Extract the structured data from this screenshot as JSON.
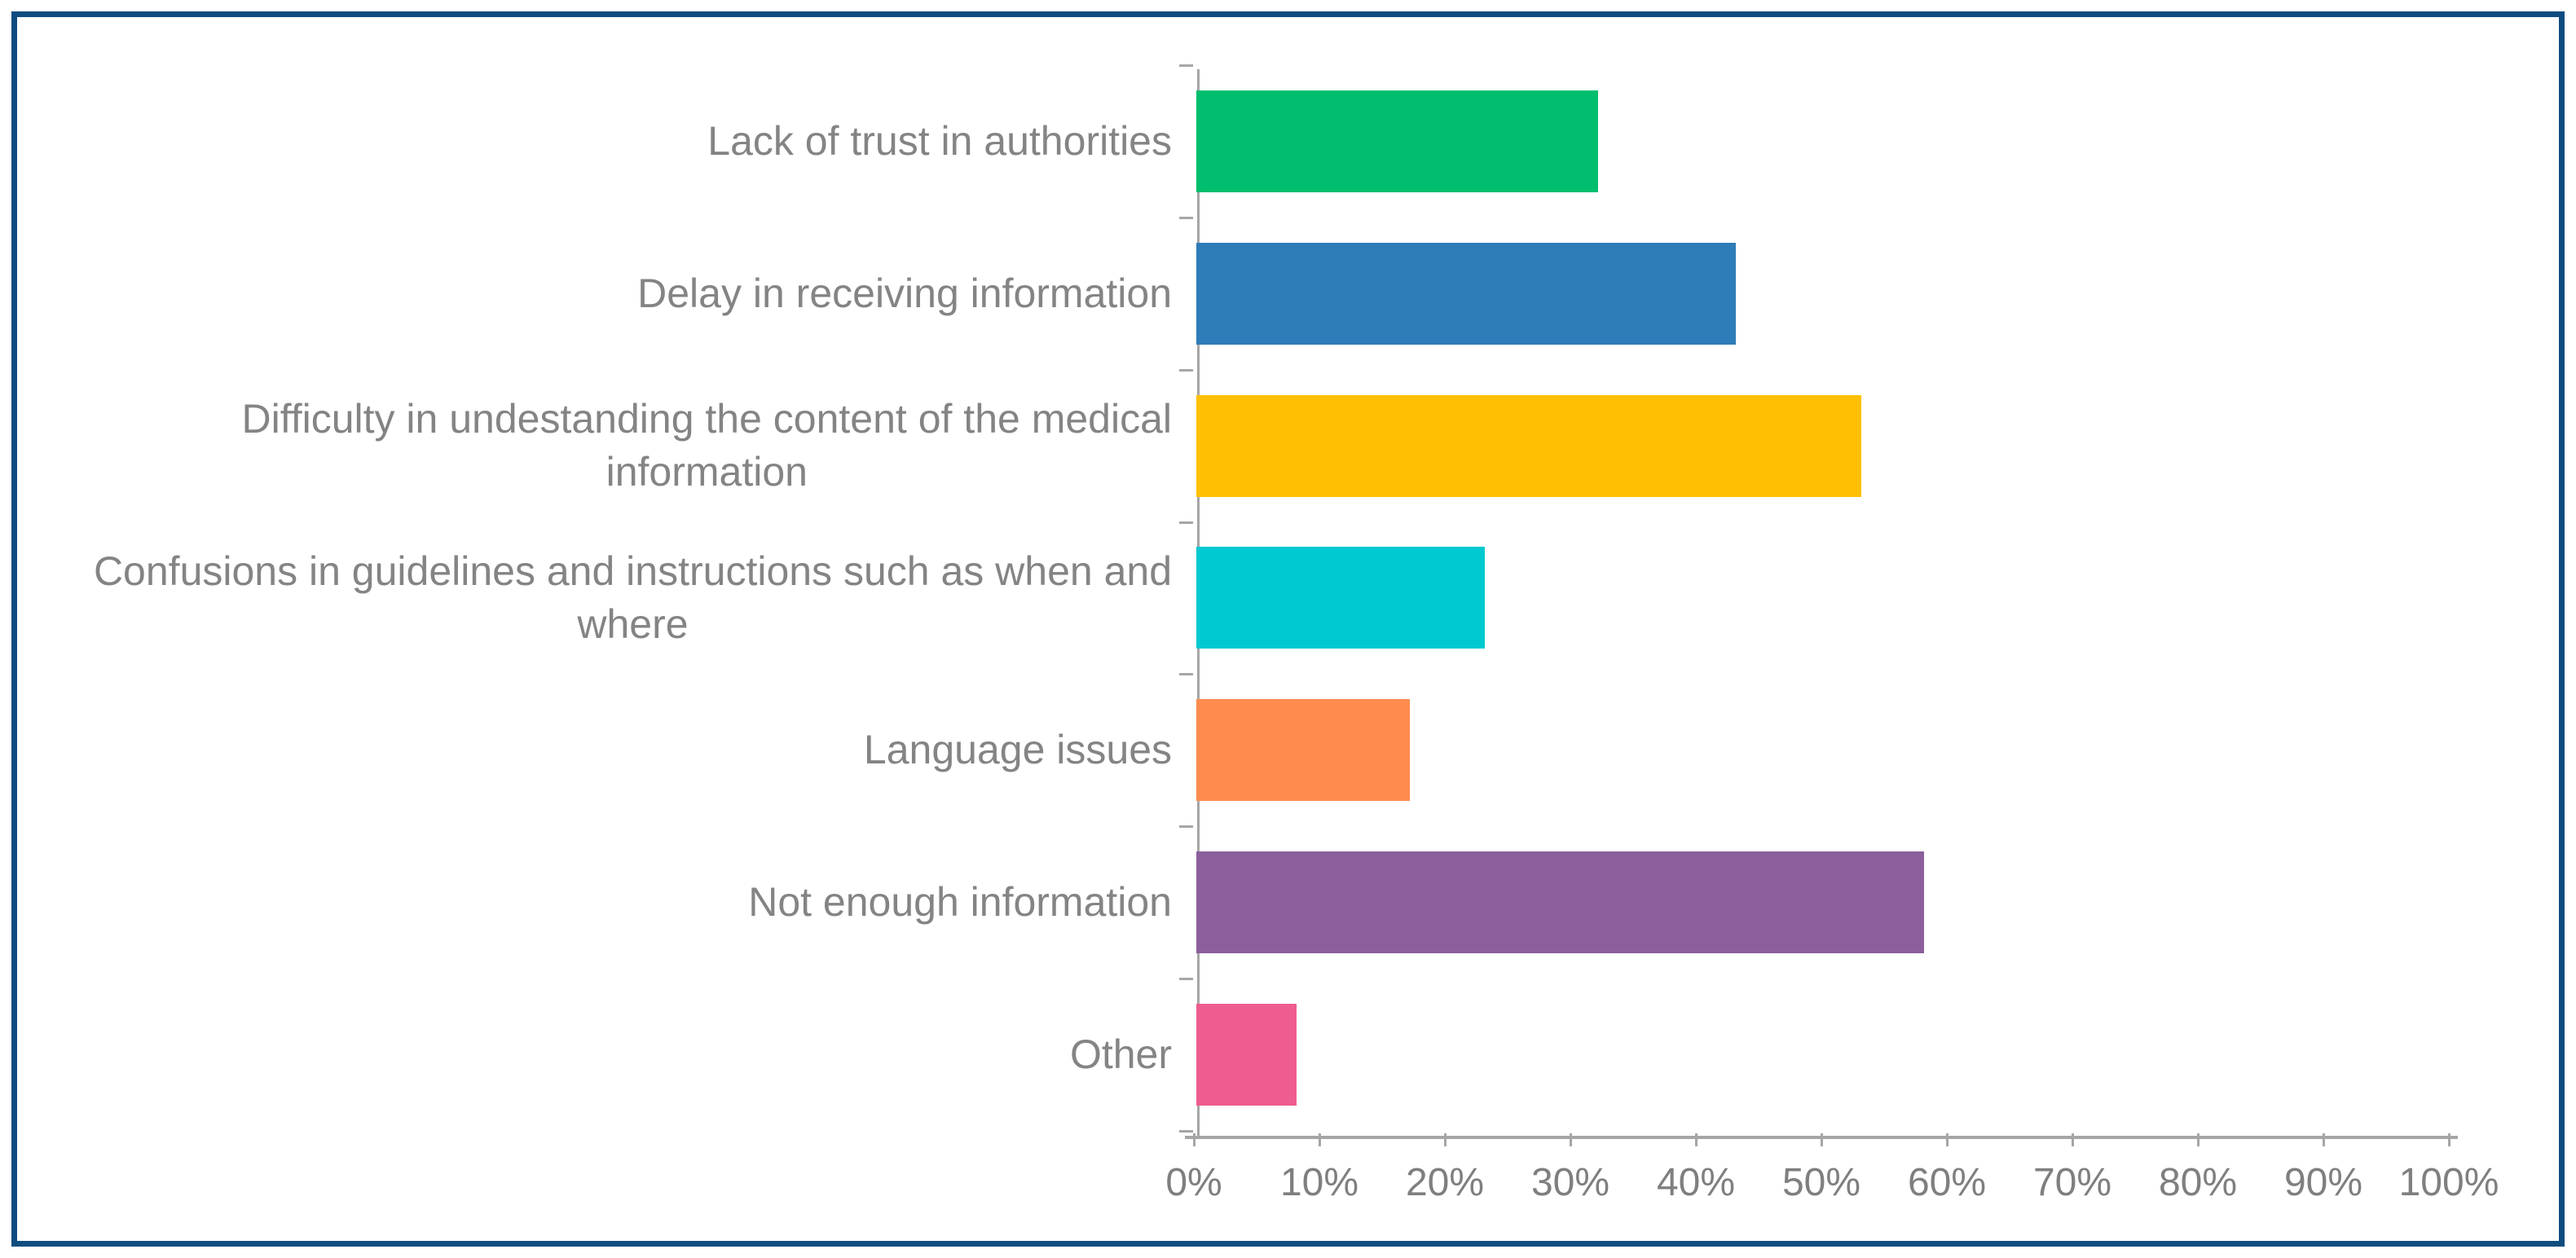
{
  "chart_data": {
    "type": "bar",
    "orientation": "horizontal",
    "title": "",
    "xlabel": "",
    "ylabel": "",
    "categories": [
      "Lack of trust in authorities",
      "Delay in receiving information",
      "Difficulty in undestanding the content of the medical information",
      "Confusions in guidelines and instructions such as when and where",
      "Language issues",
      "Not enough information",
      "Other"
    ],
    "values": [
      32,
      43,
      53,
      23,
      17,
      58,
      8
    ],
    "unit": "%",
    "xlim": [
      0,
      100
    ],
    "x_tick_step": 10,
    "x_tick_labels": [
      "0%",
      "10%",
      "20%",
      "30%",
      "40%",
      "50%",
      "60%",
      "70%",
      "80%",
      "90%",
      "100%"
    ],
    "grid": false,
    "legend": false,
    "data_labels": false,
    "bar_colors": [
      "#00BE6D",
      "#2E7CB8",
      "#FFC003",
      "#00C9D0",
      "#FD8C4E",
      "#8A5F9C",
      "#EE5C90"
    ]
  },
  "display": {
    "category_label_wrapped": [
      "Lack of trust in authorities",
      "Delay in receiving information",
      "Difficulty in undestanding the content of the medical\ninformation",
      "Confusions in guidelines and instructions such as when and\nwhere",
      "Language issues",
      "Not enough information",
      "Other"
    ],
    "colors": {
      "frame_border": "#0E4C80",
      "axis_line": "#A6A6A6",
      "tick_text": "#7F7F7F",
      "label_text": "#848484",
      "background": "#FFFFFF"
    }
  }
}
